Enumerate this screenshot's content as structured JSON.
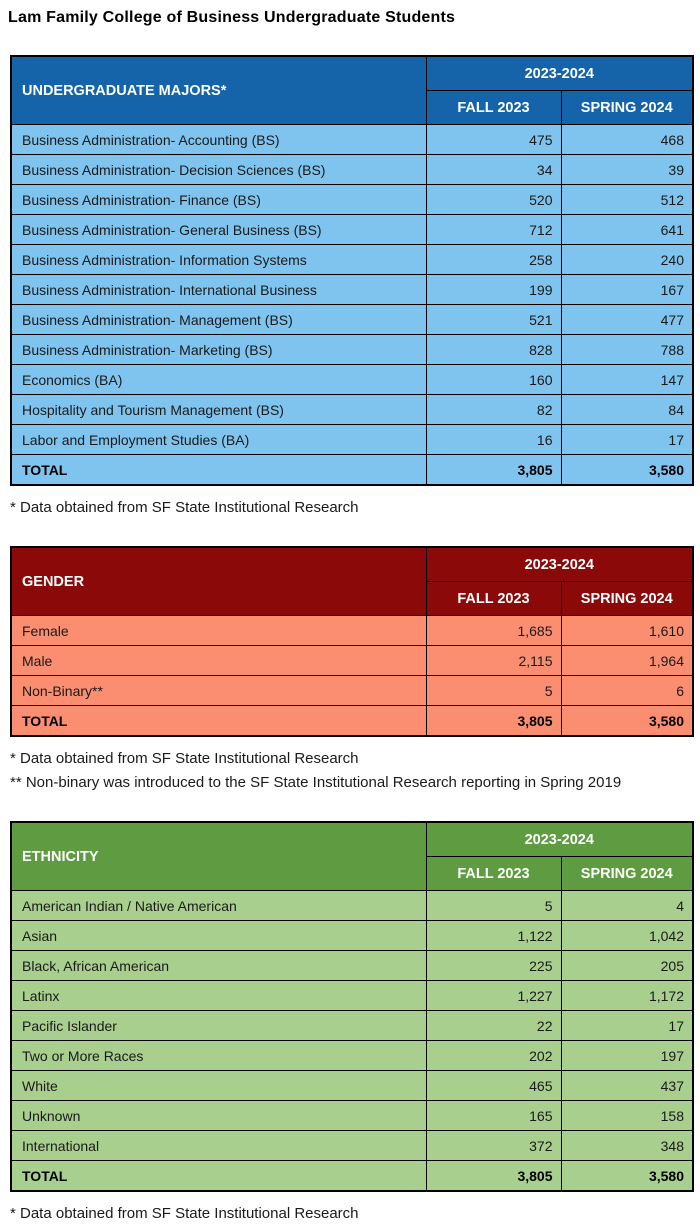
{
  "page_title": "Lam Family College of Business Undergraduate Students",
  "columns": {
    "year_span": "2023-2024",
    "fall": "FALL 2023",
    "spring": "SPRING 2024"
  },
  "tables": [
    {
      "id": "majors",
      "header_label": "UNDERGRADUATE MAJORS*",
      "theme": {
        "header_bg": "#1563A9",
        "body_bg": "#7FC4EF",
        "header_text": "#FFFFFF"
      },
      "rows": [
        {
          "label": "Business Administration- Accounting (BS)",
          "fall": "475",
          "spring": "468"
        },
        {
          "label": "Business Administration- Decision Sciences (BS)",
          "fall": "34",
          "spring": "39"
        },
        {
          "label": "Business Administration- Finance (BS)",
          "fall": "520",
          "spring": "512"
        },
        {
          "label": "Business Administration- General Business (BS)",
          "fall": "712",
          "spring": "641"
        },
        {
          "label": "Business Administration- Information Systems",
          "fall": "258",
          "spring": "240"
        },
        {
          "label": "Business Administration- International Business",
          "fall": "199",
          "spring": "167"
        },
        {
          "label": "Business Administration- Management (BS)",
          "fall": "521",
          "spring": "477"
        },
        {
          "label": "Business Administration- Marketing (BS)",
          "fall": "828",
          "spring": "788"
        },
        {
          "label": "Economics (BA)",
          "fall": "160",
          "spring": "147"
        },
        {
          "label": "Hospitality and Tourism Management (BS)",
          "fall": "82",
          "spring": "84"
        },
        {
          "label": "Labor and Employment Studies (BA)",
          "fall": "16",
          "spring": "17"
        }
      ],
      "total": {
        "label": "TOTAL",
        "fall": "3,805",
        "spring": "3,580"
      },
      "footnotes": [
        "* Data obtained from SF State Institutional Research"
      ]
    },
    {
      "id": "gender",
      "header_label": "GENDER",
      "theme": {
        "header_bg": "#8B0909",
        "body_bg": "#FB8E70",
        "header_text": "#FFFFFF"
      },
      "rows": [
        {
          "label": "Female",
          "fall": "1,685",
          "spring": "1,610"
        },
        {
          "label": "Male",
          "fall": "2,115",
          "spring": "1,964"
        },
        {
          "label": "Non-Binary**",
          "fall": "5",
          "spring": "6"
        }
      ],
      "total": {
        "label": "TOTAL",
        "fall": "3,805",
        "spring": "3,580"
      },
      "footnotes": [
        "* Data obtained from SF State Institutional Research",
        "** Non-binary was introduced to the SF State Institutional Research reporting in Spring 2019"
      ]
    },
    {
      "id": "ethnicity",
      "header_label": "ETHNICITY",
      "theme": {
        "header_bg": "#5F9C41",
        "body_bg": "#A9CF8E",
        "header_text": "#FFFFFF"
      },
      "rows": [
        {
          "label": "American Indian / Native American",
          "fall": "5",
          "spring": "4"
        },
        {
          "label": "Asian",
          "fall": "1,122",
          "spring": "1,042"
        },
        {
          "label": "Black, African American",
          "fall": "225",
          "spring": "205"
        },
        {
          "label": "Latinx",
          "fall": "1,227",
          "spring": "1,172"
        },
        {
          "label": "Pacific Islander",
          "fall": "22",
          "spring": "17"
        },
        {
          "label": "Two or More Races",
          "fall": "202",
          "spring": "197"
        },
        {
          "label": "White",
          "fall": "465",
          "spring": "437"
        },
        {
          "label": "Unknown",
          "fall": "165",
          "spring": "158"
        },
        {
          "label": "International",
          "fall": "372",
          "spring": "348"
        }
      ],
      "total": {
        "label": "TOTAL",
        "fall": "3,805",
        "spring": "3,580"
      },
      "footnotes": [
        "* Data obtained from SF State Institutional Research"
      ]
    }
  ]
}
